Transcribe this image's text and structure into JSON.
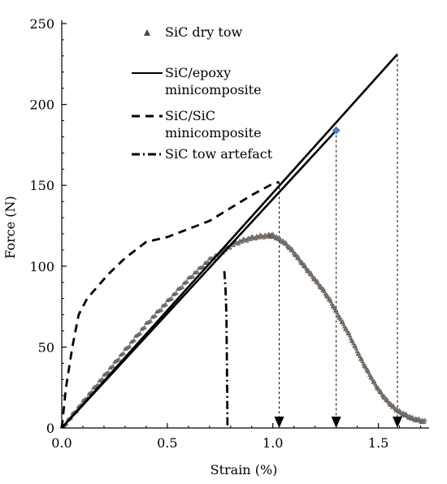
{
  "chart_data": {
    "type": "line",
    "xlabel": "Strain (%)",
    "ylabel": "Force (N)",
    "xlim": [
      0,
      1.75
    ],
    "ylim": [
      0,
      250
    ],
    "x_ticks": [
      {
        "value": 0.0,
        "label": "0.0"
      },
      {
        "value": 0.5,
        "label": "0.5"
      },
      {
        "value": 1.0,
        "label": "1.0"
      },
      {
        "value": 1.5,
        "label": "1.5"
      }
    ],
    "y_ticks": [
      {
        "value": 0,
        "label": "0"
      },
      {
        "value": 50,
        "label": "50"
      },
      {
        "value": 100,
        "label": "100"
      },
      {
        "value": 150,
        "label": "150"
      },
      {
        "value": 200,
        "label": "200"
      },
      {
        "value": 250,
        "label": "250"
      }
    ],
    "grid": false,
    "legend_position": "top-right",
    "series": [
      {
        "name": "SiC dry tow",
        "style": "scatter",
        "marker": "triangle",
        "color": "#8a8178",
        "x": [
          0.0,
          0.05,
          0.1,
          0.15,
          0.2,
          0.25,
          0.3,
          0.35,
          0.4,
          0.45,
          0.5,
          0.55,
          0.6,
          0.65,
          0.7,
          0.75,
          0.78,
          0.82,
          0.86,
          0.9,
          0.94,
          0.98,
          1.0,
          1.03,
          1.06,
          1.09,
          1.12,
          1.15,
          1.18,
          1.21,
          1.24,
          1.27,
          1.3,
          1.33,
          1.36,
          1.39,
          1.42,
          1.45,
          1.48,
          1.51,
          1.54,
          1.57,
          1.6,
          1.63,
          1.66,
          1.69,
          1.72
        ],
        "y": [
          0,
          8,
          16,
          24,
          32,
          40,
          48,
          56,
          64,
          71,
          78,
          85,
          92,
          98,
          104,
          108,
          111,
          114,
          116,
          117.5,
          118.5,
          119,
          119,
          117,
          114,
          110,
          105,
          100,
          95,
          90,
          85,
          79,
          72,
          65,
          58,
          50,
          42,
          35,
          28,
          22,
          17,
          13,
          10,
          8,
          6,
          5,
          4
        ]
      },
      {
        "name": "SiC/epoxy minicomposite",
        "style": "solid",
        "color": "#000000",
        "x": [
          0,
          1.59
        ],
        "y": [
          0,
          231
        ]
      },
      {
        "name": "SiC/SiC minicomposite",
        "style": "dashed",
        "color": "#000000",
        "x": [
          0,
          0.02,
          0.05,
          0.08,
          0.12,
          0.16,
          0.22,
          0.3,
          0.4,
          0.5,
          0.6,
          0.7,
          0.8,
          0.9,
          1.0,
          1.03
        ],
        "y": [
          0,
          25,
          50,
          70,
          80,
          86,
          95,
          105,
          115,
          118,
          123,
          128,
          136,
          144,
          151,
          152
        ]
      },
      {
        "name": "SiC tow artefact",
        "style": "dash-dot",
        "color": "#000000",
        "x": [
          0.77,
          0.775,
          0.78,
          0.782,
          0.784,
          0.785
        ],
        "y": [
          97,
          88,
          70,
          45,
          20,
          0
        ]
      },
      {
        "name": "",
        "style": "solid",
        "color": "#000000",
        "x": [
          0,
          1.3
        ],
        "y": [
          0,
          184
        ],
        "end_marker": {
          "shape": "diamond",
          "color": "#4a7fc1",
          "x": 1.3,
          "y": 184
        }
      }
    ],
    "failure_markers": [
      {
        "x": 1.03,
        "y_top": 152
      },
      {
        "x": 1.3,
        "y_top": 184
      },
      {
        "x": 1.59,
        "y_top": 231
      }
    ],
    "legend": [
      {
        "label": "SiC dry tow",
        "symbol": "triangle"
      },
      {
        "label": "SiC/epoxy\nminicomposite",
        "symbol": "solid"
      },
      {
        "label": "SiC/SiC\nminicomposite",
        "symbol": "dashed"
      },
      {
        "label": "SiC tow artefact",
        "symbol": "dash-dot"
      }
    ]
  }
}
